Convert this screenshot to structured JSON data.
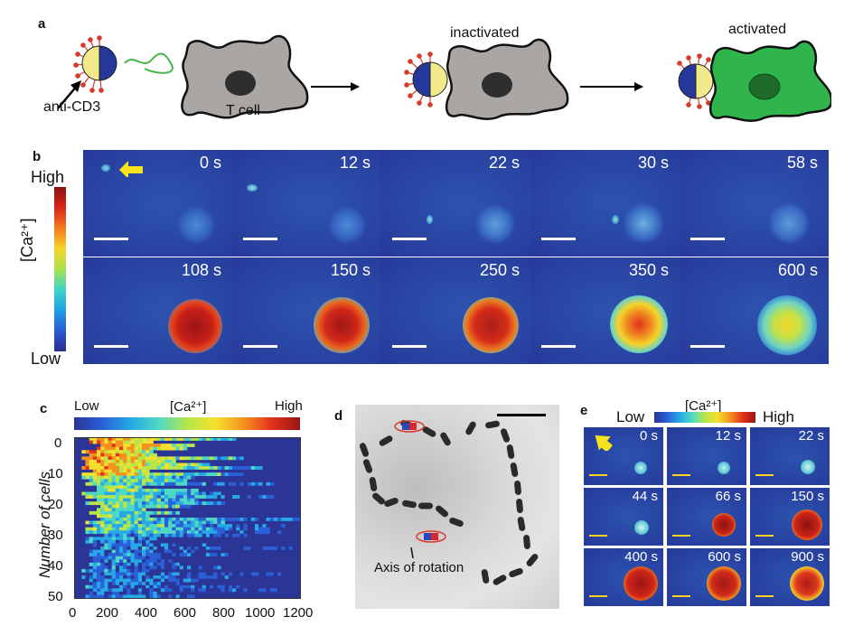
{
  "panels": {
    "a": "a",
    "b": "b",
    "c": "c",
    "d": "d",
    "e": "e"
  },
  "panel_a": {
    "anti_cd3_label": "anti-CD3",
    "t_cell_label": "T cell",
    "inactivated_label": "inactivated",
    "activated_label": "activated",
    "colors": {
      "cell_gray": "#a9a6a4",
      "cell_green": "#2fb54c",
      "particle_blue": "#25389a",
      "particle_yellow": "#f2ea8a",
      "antibody_red": "#d83a2a"
    }
  },
  "panel_b": {
    "colorbar_high": "High",
    "colorbar_low": "Low",
    "colorbar_label": "[Ca²⁺]",
    "row1_times": [
      "0 s",
      "12 s",
      "22 s",
      "30 s",
      "58 s"
    ],
    "row2_times": [
      "108 s",
      "150 s",
      "250 s",
      "350 s",
      "600 s"
    ]
  },
  "panel_c": {
    "colorbar_low": "Low",
    "colorbar_label": "[Ca²⁺]",
    "colorbar_high": "High",
    "ylabel": "Number of cells",
    "y_ticks": [
      "0",
      "10",
      "20",
      "30",
      "40",
      "50"
    ],
    "x_ticks": [
      "0",
      "200",
      "400",
      "600",
      "800",
      "1000",
      "1200"
    ],
    "chart_data": {
      "type": "heatmap",
      "xlabel": "",
      "ylabel": "Number of cells",
      "xlim": [
        0,
        1200
      ],
      "ylim": [
        0,
        50
      ],
      "x_ticks": [
        0,
        200,
        400,
        600,
        800,
        1000,
        1200
      ],
      "y_ticks": [
        0,
        10,
        20,
        30,
        40,
        50
      ],
      "colorbar": {
        "label": "[Ca²⁺]",
        "low": "Low",
        "high": "High"
      }
    }
  },
  "panel_d": {
    "axis_label": "Axis of rotation"
  },
  "panel_e": {
    "colorbar_low": "Low",
    "colorbar_label": "[Ca²⁺]",
    "colorbar_high": "High",
    "times": [
      "0 s",
      "12 s",
      "22 s",
      "44 s",
      "66 s",
      "150 s",
      "400 s",
      "600 s",
      "900 s"
    ]
  }
}
